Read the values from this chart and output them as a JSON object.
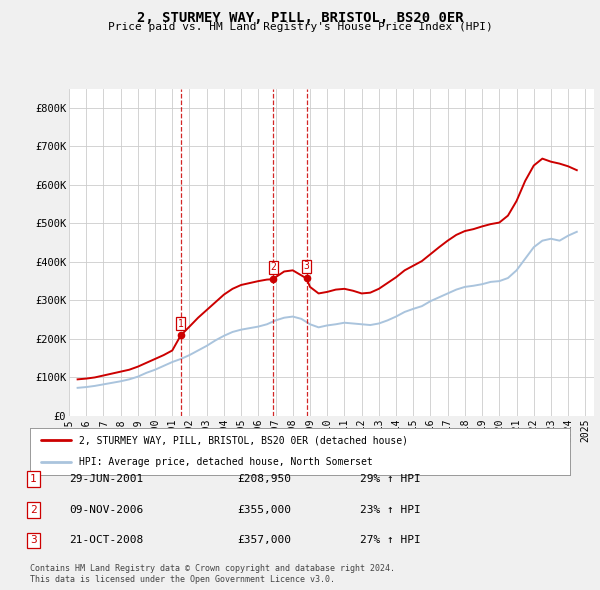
{
  "title": "2, STURMEY WAY, PILL, BRISTOL, BS20 0ER",
  "subtitle": "Price paid vs. HM Land Registry's House Price Index (HPI)",
  "ylim": [
    0,
    850000
  ],
  "yticks": [
    0,
    100000,
    200000,
    300000,
    400000,
    500000,
    600000,
    700000,
    800000
  ],
  "ytick_labels": [
    "£0",
    "£100K",
    "£200K",
    "£300K",
    "£400K",
    "£500K",
    "£600K",
    "£700K",
    "£800K"
  ],
  "hpi_color": "#aac4dd",
  "price_color": "#cc0000",
  "vline_color": "#cc0000",
  "transactions": [
    {
      "label": "1",
      "date_str": "29-JUN-2001",
      "date_x": 2001.49,
      "price": 208950,
      "pct": "29%",
      "dir": "↑"
    },
    {
      "label": "2",
      "date_str": "09-NOV-2006",
      "date_x": 2006.86,
      "price": 355000,
      "pct": "23%",
      "dir": "↑"
    },
    {
      "label": "3",
      "date_str": "21-OCT-2008",
      "date_x": 2008.8,
      "price": 357000,
      "pct": "27%",
      "dir": "↑"
    }
  ],
  "legend_line1": "2, STURMEY WAY, PILL, BRISTOL, BS20 0ER (detached house)",
  "legend_line2": "HPI: Average price, detached house, North Somerset",
  "footer1": "Contains HM Land Registry data © Crown copyright and database right 2024.",
  "footer2": "This data is licensed under the Open Government Licence v3.0.",
  "hpi_data_x": [
    1995.5,
    1996.0,
    1996.5,
    1997.0,
    1997.5,
    1998.0,
    1998.5,
    1999.0,
    1999.5,
    2000.0,
    2000.5,
    2001.0,
    2001.5,
    2002.0,
    2002.5,
    2003.0,
    2003.5,
    2004.0,
    2004.5,
    2005.0,
    2005.5,
    2006.0,
    2006.5,
    2007.0,
    2007.5,
    2008.0,
    2008.5,
    2009.0,
    2009.5,
    2010.0,
    2010.5,
    2011.0,
    2011.5,
    2012.0,
    2012.5,
    2013.0,
    2013.5,
    2014.0,
    2014.5,
    2015.0,
    2015.5,
    2016.0,
    2016.5,
    2017.0,
    2017.5,
    2018.0,
    2018.5,
    2019.0,
    2019.5,
    2020.0,
    2020.5,
    2021.0,
    2021.5,
    2022.0,
    2022.5,
    2023.0,
    2023.5,
    2024.0,
    2024.5
  ],
  "hpi_data_y": [
    73000,
    75000,
    78000,
    82000,
    86000,
    90000,
    95000,
    102000,
    112000,
    120000,
    130000,
    140000,
    148000,
    158000,
    170000,
    182000,
    196000,
    208000,
    218000,
    224000,
    228000,
    232000,
    238000,
    248000,
    255000,
    258000,
    252000,
    238000,
    230000,
    235000,
    238000,
    242000,
    240000,
    238000,
    236000,
    240000,
    248000,
    258000,
    270000,
    278000,
    285000,
    298000,
    308000,
    318000,
    328000,
    335000,
    338000,
    342000,
    348000,
    350000,
    358000,
    378000,
    408000,
    438000,
    455000,
    460000,
    455000,
    468000,
    478000
  ],
  "price_data_x": [
    1995.5,
    1996.0,
    1996.5,
    1997.0,
    1997.5,
    1998.0,
    1998.5,
    1999.0,
    1999.5,
    2000.0,
    2000.5,
    2001.0,
    2001.49,
    2002.0,
    2002.5,
    2003.0,
    2003.5,
    2004.0,
    2004.5,
    2005.0,
    2005.5,
    2006.0,
    2006.5,
    2006.86,
    2007.0,
    2007.5,
    2008.0,
    2008.8,
    2009.0,
    2009.5,
    2010.0,
    2010.5,
    2011.0,
    2011.5,
    2012.0,
    2012.5,
    2013.0,
    2013.5,
    2014.0,
    2014.5,
    2015.0,
    2015.5,
    2016.0,
    2016.5,
    2017.0,
    2017.5,
    2018.0,
    2018.5,
    2019.0,
    2019.5,
    2020.0,
    2020.5,
    2021.0,
    2021.5,
    2022.0,
    2022.5,
    2023.0,
    2023.5,
    2024.0,
    2024.5
  ],
  "price_data_y": [
    95000,
    97000,
    100000,
    105000,
    110000,
    115000,
    120000,
    128000,
    138000,
    148000,
    158000,
    170000,
    208950,
    232000,
    255000,
    275000,
    295000,
    315000,
    330000,
    340000,
    345000,
    350000,
    354000,
    355000,
    360000,
    375000,
    378000,
    357000,
    335000,
    318000,
    322000,
    328000,
    330000,
    325000,
    318000,
    320000,
    330000,
    345000,
    360000,
    378000,
    390000,
    402000,
    420000,
    438000,
    455000,
    470000,
    480000,
    485000,
    492000,
    498000,
    502000,
    520000,
    558000,
    610000,
    650000,
    668000,
    660000,
    655000,
    648000,
    638000
  ],
  "xlim": [
    1995,
    2025.5
  ],
  "xtick_years": [
    1995,
    1996,
    1997,
    1998,
    1999,
    2000,
    2001,
    2002,
    2003,
    2004,
    2005,
    2006,
    2007,
    2008,
    2009,
    2010,
    2011,
    2012,
    2013,
    2014,
    2015,
    2016,
    2017,
    2018,
    2019,
    2020,
    2021,
    2022,
    2023,
    2024,
    2025
  ],
  "bg_color": "#f0f0f0",
  "plot_bg_color": "#ffffff",
  "grid_color": "#cccccc"
}
